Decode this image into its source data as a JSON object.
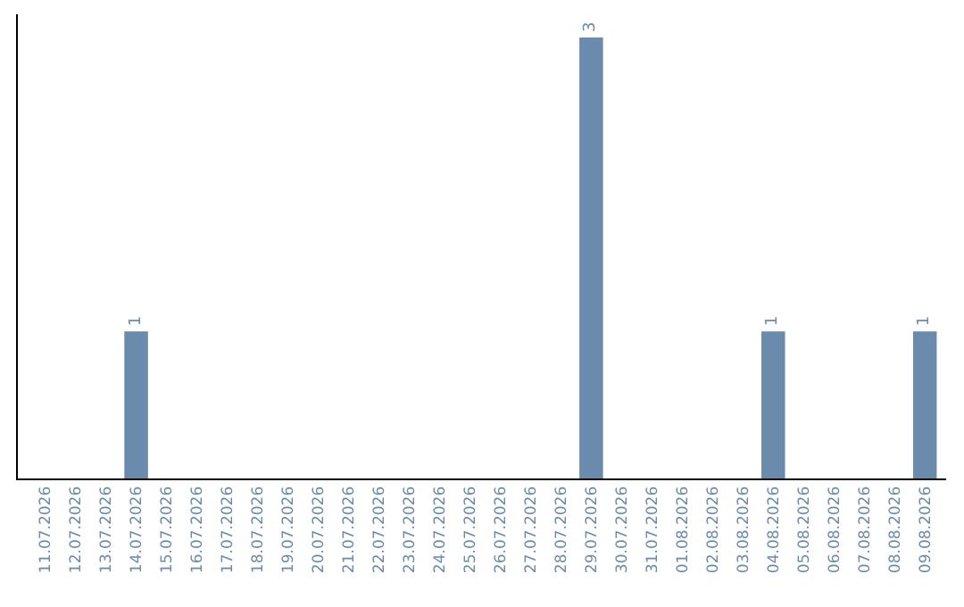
{
  "chart_data": {
    "type": "bar",
    "categories": [
      "11.07.2026",
      "12.07.2026",
      "13.07.2026",
      "14.07.2026",
      "15.07.2026",
      "16.07.2026",
      "17.07.2026",
      "18.07.2026",
      "19.07.2026",
      "20.07.2026",
      "21.07.2026",
      "22.07.2026",
      "23.07.2026",
      "24.07.2026",
      "25.07.2026",
      "26.07.2026",
      "27.07.2026",
      "28.07.2026",
      "29.07.2026",
      "30.07.2026",
      "31.07.2026",
      "01.08.2026",
      "02.08.2026",
      "03.08.2026",
      "04.08.2026",
      "05.08.2026",
      "06.08.2026",
      "07.08.2026",
      "08.08.2026",
      "09.08.2026"
    ],
    "values": [
      0,
      0,
      0,
      1,
      0,
      0,
      0,
      0,
      0,
      0,
      0,
      0,
      0,
      0,
      0,
      0,
      0,
      0,
      3,
      0,
      0,
      0,
      0,
      0,
      1,
      0,
      0,
      0,
      0,
      1
    ],
    "value_labels": [
      null,
      null,
      null,
      "1",
      null,
      null,
      null,
      null,
      null,
      null,
      null,
      null,
      null,
      null,
      null,
      null,
      null,
      null,
      "3",
      null,
      null,
      null,
      null,
      null,
      "1",
      null,
      null,
      null,
      null,
      "1"
    ],
    "color": "#6a8bab",
    "tick_labels": "x"
  }
}
